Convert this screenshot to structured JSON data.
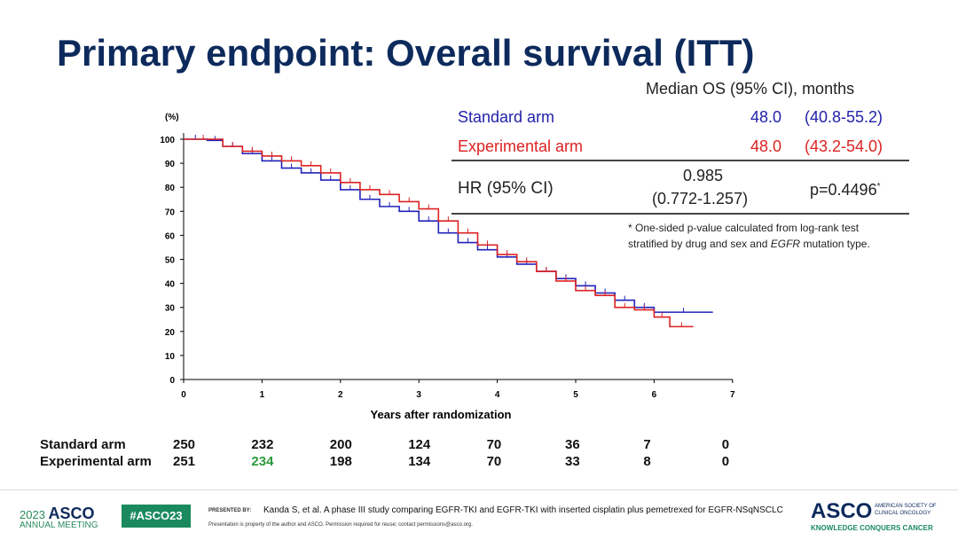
{
  "title": "Primary endpoint: Overall survival (ITT)",
  "table": {
    "header": "Median OS (95% CI), months",
    "rows": [
      {
        "arm": "Standard arm",
        "median": "48.0",
        "ci": "(40.8-55.2)"
      },
      {
        "arm": "Experimental arm",
        "median": "48.0",
        "ci": "(43.2-54.0)"
      }
    ],
    "hr_label": "HR (95% CI)",
    "hr_value": "0.985",
    "hr_ci": "(0.772-1.257)",
    "p_value": "p=0.4496",
    "p_star": "*",
    "footnote_1": "* One-sided p-value calculated from log-rank test",
    "footnote_2a": "stratified by drug and sex and ",
    "footnote_2b": "EGFR",
    "footnote_2c": " mutation type."
  },
  "chart_data": {
    "type": "line",
    "title": "",
    "xlabel": "Years after randomization",
    "ylabel": "(%)",
    "xlim": [
      0,
      7
    ],
    "ylim": [
      0,
      100
    ],
    "xticks": [
      "0",
      "1",
      "2",
      "3",
      "4",
      "5",
      "6",
      "7"
    ],
    "yticks": [
      "0",
      "10",
      "20",
      "30",
      "40",
      "50",
      "60",
      "70",
      "80",
      "90",
      "100"
    ],
    "series": [
      {
        "name": "Standard arm",
        "color": "#2222bb",
        "x": [
          0,
          0.3,
          0.5,
          0.75,
          1,
          1.25,
          1.5,
          1.75,
          2,
          2.25,
          2.5,
          2.75,
          3,
          3.25,
          3.5,
          3.75,
          4,
          4.25,
          4.5,
          4.75,
          5,
          5.25,
          5.5,
          5.75,
          6,
          6.75
        ],
        "y": [
          100,
          99.5,
          97,
          94,
          91,
          88,
          86,
          83,
          79,
          75,
          72,
          70,
          66,
          61,
          57,
          54,
          51,
          48,
          45,
          42,
          39,
          36,
          33,
          30,
          28,
          28
        ]
      },
      {
        "name": "Experimental arm",
        "color": "#dd2222",
        "x": [
          0,
          0.5,
          0.75,
          1,
          1.25,
          1.5,
          1.75,
          2,
          2.25,
          2.5,
          2.75,
          3,
          3.25,
          3.5,
          3.75,
          4,
          4.25,
          4.5,
          4.75,
          5,
          5.25,
          5.5,
          5.75,
          6,
          6.2,
          6.5
        ],
        "y": [
          100,
          97,
          95,
          93,
          91,
          89,
          86,
          82,
          79,
          77,
          74,
          71,
          66,
          61,
          56,
          52,
          49,
          45,
          41,
          37,
          35,
          30,
          29,
          26,
          22,
          22
        ]
      }
    ]
  },
  "risk_table": {
    "rows": [
      {
        "label": "Standard arm",
        "values": [
          "250",
          "232",
          "200",
          "124",
          "70",
          "36",
          "7",
          "0"
        ]
      },
      {
        "label": "Experimental arm",
        "values": [
          "251",
          "234",
          "198",
          "134",
          "70",
          "33",
          "8",
          "0"
        ]
      }
    ]
  },
  "footer": {
    "year": "2023",
    "asco": "ASCO",
    "annual": "ANNUAL MEETING",
    "hashtag": "#ASCO23",
    "presented_by": "PRESENTED BY:",
    "citation": "Kanda S, et al. A phase III study comparing EGFR-TKI and EGFR-TKI with inserted cisplatin plus pemetrexed for EGFR-NSqNSCLC",
    "disclaimer": "Presentation is property of the author and ASCO. Permission required for reuse; contact permissions@asco.org.",
    "society_1": "AMERICAN SOCIETY OF",
    "society_2": "CLINICAL ONCOLOGY",
    "tagline": "KNOWLEDGE CONQUERS CANCER"
  }
}
